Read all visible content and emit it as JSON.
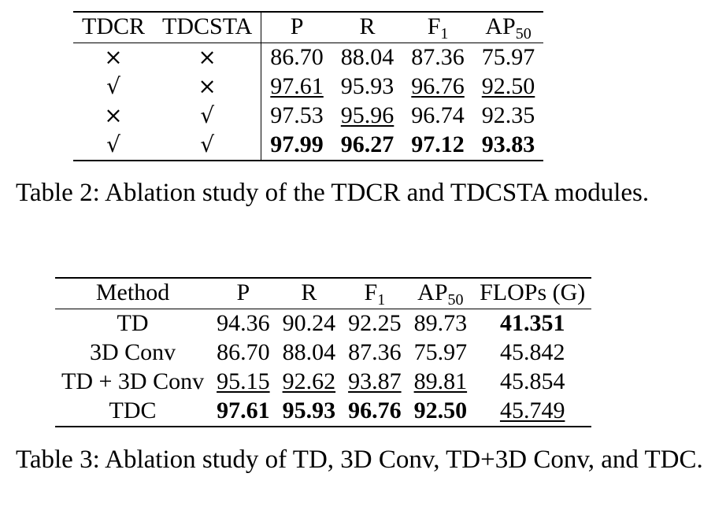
{
  "table2": {
    "headers": [
      "TDCR",
      "TDCSTA",
      "P",
      "R",
      "F",
      "1",
      "AP",
      "50"
    ],
    "rows": [
      {
        "tdcr": "×",
        "tdcsta": "×",
        "p": "86.70",
        "r": "88.04",
        "f1": "87.36",
        "ap50": "75.97"
      },
      {
        "tdcr": "√",
        "tdcsta": "×",
        "p": "97.61",
        "r": "95.93",
        "f1": "96.76",
        "ap50": "92.50"
      },
      {
        "tdcr": "×",
        "tdcsta": "√",
        "p": "97.53",
        "r": "95.96",
        "f1": "96.74",
        "ap50": "92.35"
      },
      {
        "tdcr": "√",
        "tdcsta": "√",
        "p": "97.99",
        "r": "96.27",
        "f1": "97.12",
        "ap50": "93.83"
      }
    ],
    "caption": "Table 2: Ablation study of the TDCR and TDCSTA modules."
  },
  "table3": {
    "headers": [
      "Method",
      "P",
      "R",
      "F",
      "1",
      "AP",
      "50",
      "FLOPs (G)"
    ],
    "rows": [
      {
        "method": "TD",
        "p": "94.36",
        "r": "90.24",
        "f1": "92.25",
        "ap50": "89.73",
        "flops": "41.351"
      },
      {
        "method": "3D Conv",
        "p": "86.70",
        "r": "88.04",
        "f1": "87.36",
        "ap50": "75.97",
        "flops": "45.842"
      },
      {
        "method": "TD + 3D Conv",
        "p": "95.15",
        "r": "92.62",
        "f1": "93.87",
        "ap50": "89.81",
        "flops": "45.854"
      },
      {
        "method": "TDC",
        "p": "97.61",
        "r": "95.93",
        "f1": "96.76",
        "ap50": "92.50",
        "flops": "45.749"
      }
    ],
    "caption": "Table 3: Ablation study of TD, 3D Conv, TD+3D Conv, and TDC."
  }
}
